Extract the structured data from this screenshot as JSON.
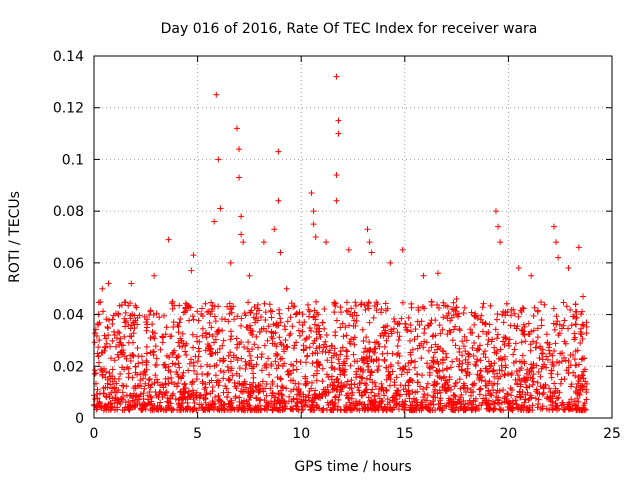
{
  "chart_data": {
    "type": "scatter",
    "title": "Day 016 of 2016, Rate Of TEC Index for receiver wara",
    "xlabel": "GPS time / hours",
    "ylabel": "ROTI / TECUs",
    "xlim": [
      0,
      25
    ],
    "ylim": [
      0,
      0.14
    ],
    "xticks": [
      0,
      5,
      10,
      15,
      20,
      25
    ],
    "yticks": [
      0,
      0.02,
      0.04,
      0.06,
      0.08,
      0.1,
      0.12,
      0.14
    ],
    "xtick_labels": [
      "0",
      "5",
      "10",
      "15",
      "20",
      "25"
    ],
    "ytick_labels": [
      "0",
      "0.02",
      "0.04",
      "0.06",
      "0.08",
      "0.1",
      "0.12",
      "0.14"
    ],
    "grid": true,
    "marker": "+",
    "marker_color": "#ff0000",
    "x_data_range": [
      0,
      23.8
    ],
    "bulk_y_range": [
      0.003,
      0.045
    ],
    "series": [
      {
        "name": "ROTI",
        "color": "#ff0000",
        "notable_points": [
          [
            0.2,
            0.036
          ],
          [
            0.4,
            0.05
          ],
          [
            0.7,
            0.052
          ],
          [
            1.8,
            0.052
          ],
          [
            2.9,
            0.055
          ],
          [
            3.6,
            0.069
          ],
          [
            4.7,
            0.057
          ],
          [
            4.8,
            0.063
          ],
          [
            5.8,
            0.076
          ],
          [
            5.9,
            0.125
          ],
          [
            6.0,
            0.1
          ],
          [
            6.1,
            0.081
          ],
          [
            6.6,
            0.06
          ],
          [
            6.9,
            0.112
          ],
          [
            7.0,
            0.104
          ],
          [
            7.0,
            0.093
          ],
          [
            7.1,
            0.078
          ],
          [
            7.1,
            0.071
          ],
          [
            7.2,
            0.068
          ],
          [
            7.5,
            0.055
          ],
          [
            8.2,
            0.068
          ],
          [
            8.7,
            0.073
          ],
          [
            8.9,
            0.103
          ],
          [
            8.9,
            0.084
          ],
          [
            9.0,
            0.064
          ],
          [
            9.3,
            0.05
          ],
          [
            10.5,
            0.087
          ],
          [
            10.6,
            0.08
          ],
          [
            10.6,
            0.075
          ],
          [
            10.7,
            0.07
          ],
          [
            11.2,
            0.068
          ],
          [
            11.7,
            0.132
          ],
          [
            11.8,
            0.115
          ],
          [
            11.8,
            0.11
          ],
          [
            11.7,
            0.094
          ],
          [
            11.7,
            0.084
          ],
          [
            12.3,
            0.065
          ],
          [
            13.2,
            0.073
          ],
          [
            13.3,
            0.068
          ],
          [
            13.4,
            0.064
          ],
          [
            14.3,
            0.06
          ],
          [
            14.9,
            0.065
          ],
          [
            15.9,
            0.055
          ],
          [
            16.6,
            0.056
          ],
          [
            17.5,
            0.046
          ],
          [
            19.4,
            0.08
          ],
          [
            19.5,
            0.074
          ],
          [
            19.6,
            0.068
          ],
          [
            20.5,
            0.058
          ],
          [
            21.1,
            0.055
          ],
          [
            22.2,
            0.074
          ],
          [
            22.3,
            0.068
          ],
          [
            22.4,
            0.062
          ],
          [
            22.9,
            0.058
          ],
          [
            23.4,
            0.066
          ],
          [
            23.6,
            0.047
          ]
        ]
      }
    ]
  }
}
